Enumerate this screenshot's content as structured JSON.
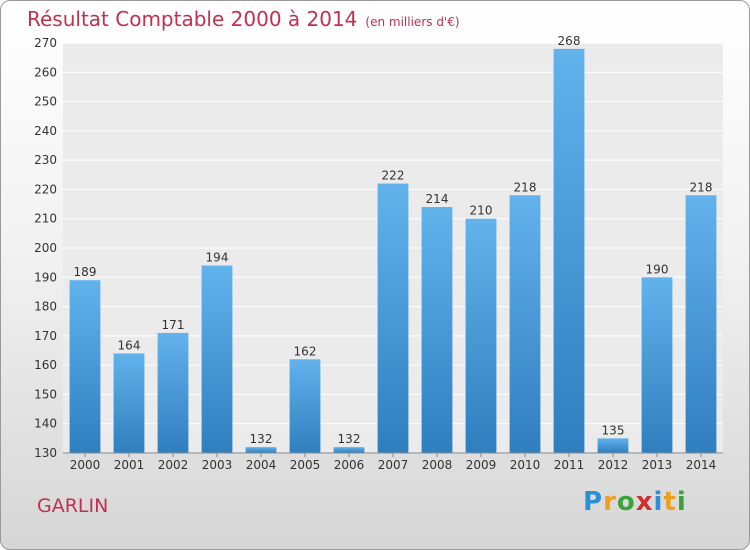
{
  "header": {
    "title": "Résultat Comptable 2000 à 2014",
    "unit": "(en milliers d'€)"
  },
  "footer": {
    "place": "GARLIN",
    "logo": "Proxiti"
  },
  "chart_data": {
    "type": "bar",
    "title": "Résultat Comptable 2000 à 2014",
    "subtitle": "(en milliers d'€)",
    "xlabel": "",
    "ylabel": "",
    "categories": [
      "2000",
      "2001",
      "2002",
      "2003",
      "2004",
      "2005",
      "2006",
      "2007",
      "2008",
      "2009",
      "2010",
      "2011",
      "2012",
      "2013",
      "2014"
    ],
    "values": [
      189,
      164,
      171,
      194,
      132,
      162,
      132,
      222,
      214,
      210,
      218,
      268,
      135,
      190,
      218
    ],
    "ylim": [
      130,
      270
    ],
    "yticks": [
      130,
      140,
      150,
      160,
      170,
      180,
      190,
      200,
      210,
      220,
      230,
      240,
      250,
      260,
      270
    ],
    "grid": true,
    "bar_color": "#3c96dc"
  }
}
